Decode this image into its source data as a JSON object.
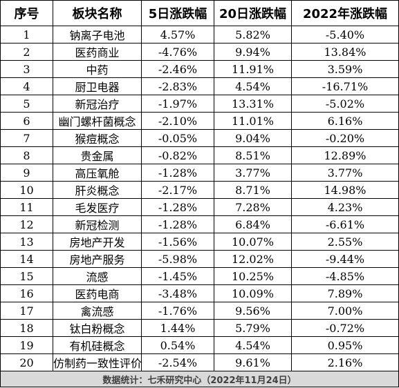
{
  "headers": [
    "序号",
    "板块名称",
    "5日涨跌幅",
    "20日涨跌幅",
    "2022年涨跌幅"
  ],
  "rows": [
    [
      "1",
      "钠离子电池",
      "4.57%",
      "5.82%",
      "-5.40%"
    ],
    [
      "2",
      "医药商业",
      "-4.76%",
      "9.94%",
      "13.84%"
    ],
    [
      "3",
      "中药",
      "-2.46%",
      "11.91%",
      "3.59%"
    ],
    [
      "4",
      "厨卫电器",
      "-2.83%",
      "4.54%",
      "-16.71%"
    ],
    [
      "5",
      "新冠治疗",
      "-1.97%",
      "13.31%",
      "-5.02%"
    ],
    [
      "6",
      "幽门螺杆菌概念",
      "-2.10%",
      "11.01%",
      "6.16%"
    ],
    [
      "7",
      "猴痘概念",
      "-0.05%",
      "9.04%",
      "-0.20%"
    ],
    [
      "8",
      "贵金属",
      "-0.82%",
      "8.51%",
      "12.89%"
    ],
    [
      "9",
      "高压氧舱",
      "-1.28%",
      "3.77%",
      "3.77%"
    ],
    [
      "10",
      "肝炎概念",
      "-2.17%",
      "8.71%",
      "14.98%"
    ],
    [
      "11",
      "毛发医疗",
      "-1.28%",
      "7.28%",
      "4.23%"
    ],
    [
      "12",
      "新冠检测",
      "-1.28%",
      "6.84%",
      "-6.61%"
    ],
    [
      "13",
      "房地产开发",
      "-1.56%",
      "10.07%",
      "2.55%"
    ],
    [
      "14",
      "房地产服务",
      "-5.98%",
      "12.02%",
      "-9.44%"
    ],
    [
      "15",
      "流感",
      "-1.45%",
      "10.25%",
      "-4.85%"
    ],
    [
      "16",
      "医药电商",
      "-3.48%",
      "10.09%",
      "7.89%"
    ],
    [
      "17",
      "禽流感",
      "-1.76%",
      "9.56%",
      "7.00%"
    ],
    [
      "18",
      "钛白粉概念",
      "1.44%",
      "5.79%",
      "-0.72%"
    ],
    [
      "19",
      "有机硅概念",
      "0.54%",
      "4.54%",
      "0.95%"
    ],
    [
      "20",
      "仿制药一致性评价",
      "-2.54%",
      "9.61%",
      "2.16%"
    ]
  ],
  "footer": "数据统计：七禾研究中心（2022年11月24日）"
}
